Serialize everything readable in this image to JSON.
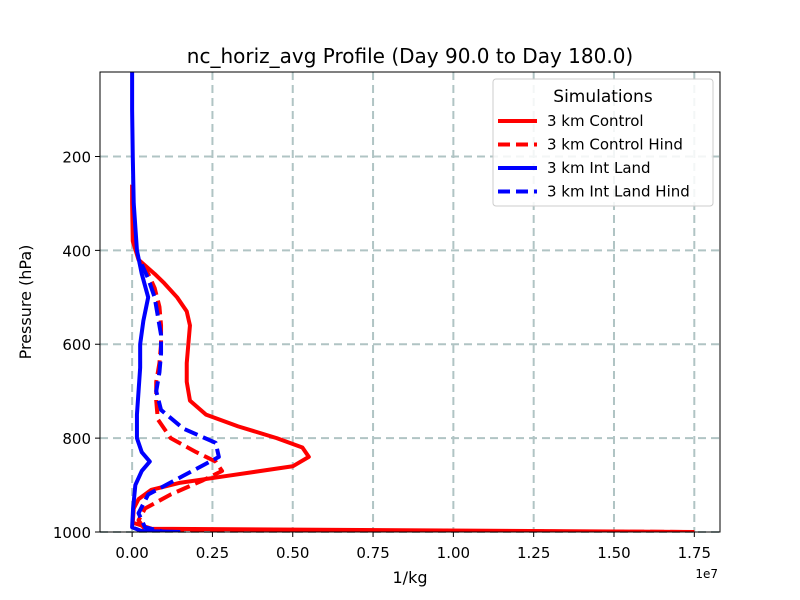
{
  "chart_data": {
    "type": "line",
    "title": "nc_horiz_avg Profile (Day 90.0 to Day 180.0)",
    "xlabel": "1/kg",
    "ylabel": "Pressure (hPa)",
    "x_scale_label": "1e7",
    "xlim": [
      -0.1,
      1.83
    ],
    "ylim": [
      1000,
      20
    ],
    "y_inverted": true,
    "x_units_multiplier": 10000000,
    "xticks": [
      0.0,
      0.25,
      0.5,
      0.75,
      1.0,
      1.25,
      1.5,
      1.75
    ],
    "xtick_labels": [
      "0.00",
      "0.25",
      "0.50",
      "0.75",
      "1.00",
      "1.25",
      "1.50",
      "1.75"
    ],
    "yticks": [
      200,
      400,
      600,
      800,
      1000
    ],
    "ytick_labels": [
      "200",
      "400",
      "600",
      "800",
      "1000"
    ],
    "grid": true,
    "legend": {
      "title": "Simulations",
      "placement": "top-right"
    },
    "series": [
      {
        "name": "3 km Control",
        "color": "#ff0000",
        "dash": "solid",
        "points": [
          [
            0.0,
            260
          ],
          [
            0.0,
            300
          ],
          [
            0.002,
            380
          ],
          [
            0.02,
            420
          ],
          [
            0.07,
            450
          ],
          [
            0.1,
            470
          ],
          [
            0.14,
            500
          ],
          [
            0.17,
            530
          ],
          [
            0.18,
            560
          ],
          [
            0.175,
            600
          ],
          [
            0.17,
            640
          ],
          [
            0.17,
            680
          ],
          [
            0.18,
            720
          ],
          [
            0.23,
            750
          ],
          [
            0.33,
            775
          ],
          [
            0.45,
            800
          ],
          [
            0.53,
            820
          ],
          [
            0.55,
            840
          ],
          [
            0.5,
            860
          ],
          [
            0.3,
            880
          ],
          [
            0.15,
            895
          ],
          [
            0.06,
            910
          ],
          [
            0.02,
            930
          ],
          [
            0.005,
            950
          ],
          [
            0.002,
            980
          ],
          [
            0.06,
            993
          ],
          [
            1.75,
            1000
          ]
        ]
      },
      {
        "name": "3 km Control Hind",
        "color": "#ff0000",
        "dash": "dashed",
        "points": [
          [
            0.03,
            430
          ],
          [
            0.05,
            450
          ],
          [
            0.07,
            480
          ],
          [
            0.085,
            520
          ],
          [
            0.09,
            560
          ],
          [
            0.09,
            600
          ],
          [
            0.085,
            640
          ],
          [
            0.075,
            680
          ],
          [
            0.075,
            720
          ],
          [
            0.08,
            760
          ],
          [
            0.12,
            800
          ],
          [
            0.2,
            830
          ],
          [
            0.26,
            850
          ],
          [
            0.28,
            870
          ],
          [
            0.22,
            890
          ],
          [
            0.12,
            920
          ],
          [
            0.04,
            950
          ],
          [
            0.02,
            975
          ],
          [
            0.04,
            995
          ],
          [
            1.75,
            1000
          ]
        ]
      },
      {
        "name": "3 km Int Land",
        "color": "#0000ff",
        "dash": "solid",
        "points": [
          [
            0.0,
            20
          ],
          [
            0.0,
            100
          ],
          [
            0.002,
            200
          ],
          [
            0.005,
            300
          ],
          [
            0.015,
            400
          ],
          [
            0.03,
            450
          ],
          [
            0.05,
            500
          ],
          [
            0.035,
            550
          ],
          [
            0.025,
            600
          ],
          [
            0.025,
            650
          ],
          [
            0.02,
            700
          ],
          [
            0.015,
            750
          ],
          [
            0.015,
            800
          ],
          [
            0.03,
            830
          ],
          [
            0.055,
            850
          ],
          [
            0.03,
            870
          ],
          [
            0.01,
            900
          ],
          [
            0.003,
            950
          ],
          [
            0.0,
            990
          ],
          [
            0.03,
            998
          ],
          [
            0.15,
            1000
          ]
        ]
      },
      {
        "name": "3 km Int Land Hind",
        "color": "#0000ff",
        "dash": "dashed",
        "points": [
          [
            0.03,
            430
          ],
          [
            0.05,
            460
          ],
          [
            0.07,
            500
          ],
          [
            0.08,
            540
          ],
          [
            0.09,
            580
          ],
          [
            0.09,
            620
          ],
          [
            0.085,
            660
          ],
          [
            0.075,
            700
          ],
          [
            0.09,
            740
          ],
          [
            0.16,
            780
          ],
          [
            0.26,
            810
          ],
          [
            0.27,
            840
          ],
          [
            0.16,
            880
          ],
          [
            0.05,
            920
          ],
          [
            0.02,
            960
          ],
          [
            0.04,
            990
          ],
          [
            0.1,
            1000
          ]
        ]
      }
    ]
  }
}
